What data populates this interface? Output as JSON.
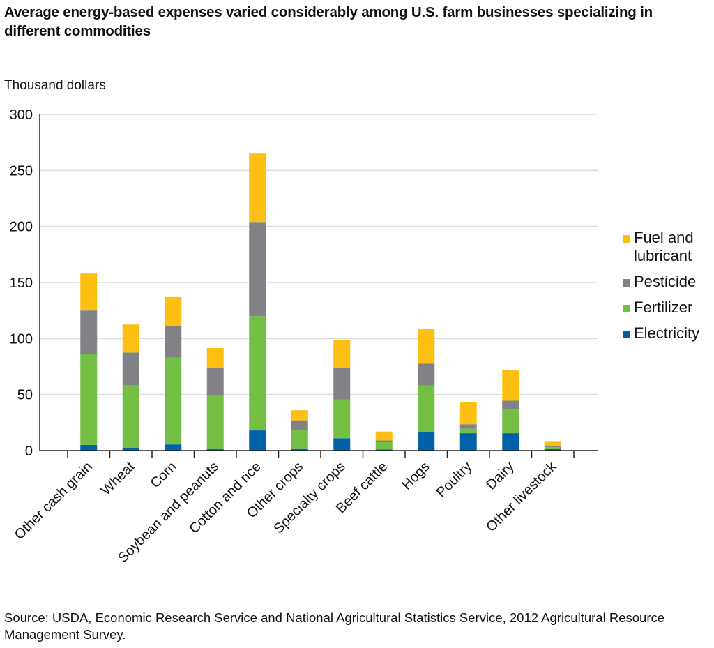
{
  "title": "Average energy-based expenses varied considerably among U.S. farm businesses specializing in different commodities",
  "source": "Source: USDA, Economic Research Service and National Agricultural Statistics Service, 2012 Agricultural Resource Management Survey.",
  "chart_data": {
    "type": "bar",
    "stacked": true,
    "title": "Average energy-based expenses varied considerably among U.S. farm businesses specializing in different commodities",
    "ylabel": "Thousand dollars",
    "xlabel": "",
    "ylim": [
      0,
      300
    ],
    "yticks": [
      0,
      50,
      100,
      150,
      200,
      250,
      300
    ],
    "grid": true,
    "legend_position": "right",
    "categories": [
      "Other cash grain",
      "Wheat",
      "Corn",
      "Soybean and peanuts",
      "Cotton and rice",
      "Other crops",
      "Specialty crops",
      "Beef cattle",
      "Hogs",
      "Poultry",
      "Dairy",
      "Other livestock"
    ],
    "series": [
      {
        "name": "Electricity",
        "color": "#0060a8",
        "values": [
          5,
          2.5,
          5.5,
          2,
          18,
          2,
          11,
          1,
          16.5,
          15.5,
          15.5,
          1.5
        ]
      },
      {
        "name": "Fertilizer",
        "color": "#72bf44",
        "values": [
          81.5,
          56,
          77.5,
          47.5,
          102,
          16.5,
          34.5,
          7,
          41.5,
          4,
          21,
          1.5
        ]
      },
      {
        "name": "Pesticide",
        "color": "#808285",
        "values": [
          38.5,
          29,
          28,
          24,
          84,
          8.5,
          28.5,
          1,
          19.5,
          4,
          8,
          1.5
        ]
      },
      {
        "name": "Fuel and lubricant",
        "color": "#fdbf12",
        "values": [
          33,
          25,
          26,
          18,
          61,
          9,
          25,
          8,
          31,
          20,
          27.5,
          4
        ]
      }
    ],
    "legend_order": [
      "Fuel and lubricant",
      "Pesticide",
      "Fertilizer",
      "Electricity"
    ]
  }
}
